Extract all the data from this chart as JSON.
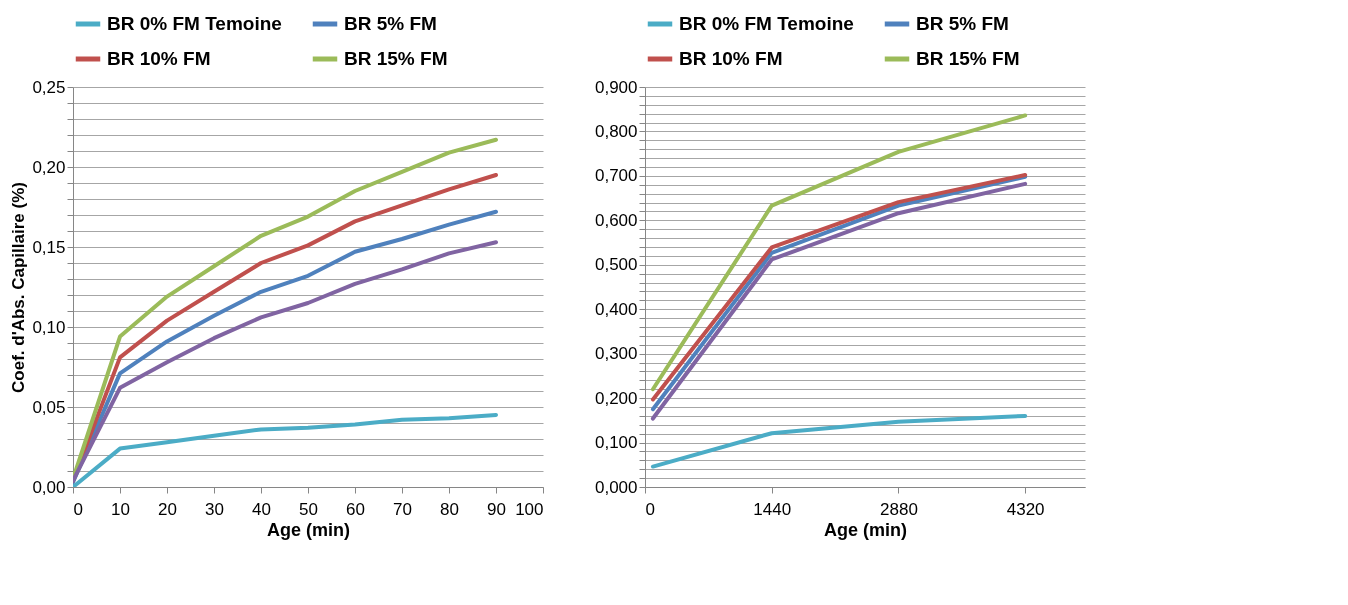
{
  "chart_data": [
    {
      "type": "line",
      "xlabel": "Age (min)",
      "ylabel": "Coef. d'Abs. Capillaire (%)",
      "legend": "top",
      "grid": "y",
      "marker": "none",
      "x": [
        0,
        10,
        20,
        30,
        40,
        50,
        60,
        70,
        80,
        90
      ],
      "xlim": [
        0,
        100
      ],
      "xticks": [
        0,
        10,
        20,
        30,
        40,
        50,
        60,
        70,
        80,
        90,
        100
      ],
      "ylim": [
        0,
        0.25
      ],
      "yticks": [
        {
          "value": 0,
          "label": "0,00"
        },
        {
          "value": 0.01,
          "label": null
        },
        {
          "value": 0.02,
          "label": null
        },
        {
          "value": 0.03,
          "label": null
        },
        {
          "value": 0.04,
          "label": null
        },
        {
          "value": 0.05,
          "label": "0,05"
        },
        {
          "value": 0.06,
          "label": null
        },
        {
          "value": 0.07,
          "label": null
        },
        {
          "value": 0.08,
          "label": null
        },
        {
          "value": 0.09,
          "label": null
        },
        {
          "value": 0.1,
          "label": "0,10"
        },
        {
          "value": 0.11,
          "label": null
        },
        {
          "value": 0.12,
          "label": null
        },
        {
          "value": 0.13,
          "label": null
        },
        {
          "value": 0.14,
          "label": null
        },
        {
          "value": 0.15,
          "label": "0,15"
        },
        {
          "value": 0.16,
          "label": null
        },
        {
          "value": 0.17,
          "label": null
        },
        {
          "value": 0.18,
          "label": null
        },
        {
          "value": 0.19,
          "label": null
        },
        {
          "value": 0.2,
          "label": "0,20"
        },
        {
          "value": 0.21,
          "label": null
        },
        {
          "value": 0.22,
          "label": null
        },
        {
          "value": 0.23,
          "label": null
        },
        {
          "value": 0.24,
          "label": null
        },
        {
          "value": 0.25,
          "label": "0,25"
        }
      ],
      "series": [
        {
          "name": "BR 0% FM Temoine",
          "color": "#4bacc6",
          "values": [
            0,
            0.024,
            0.028,
            0.032,
            0.036,
            0.037,
            0.039,
            0.042,
            0.043,
            0.045
          ]
        },
        {
          "name": "BR 5% FM",
          "color": "#4f81bd",
          "values": [
            0.003,
            0.071,
            0.091,
            0.107,
            0.122,
            0.132,
            0.147,
            0.155,
            0.164,
            0.172
          ]
        },
        {
          "name": "BR 10% FM",
          "color": "#c0504d",
          "values": [
            0.004,
            0.081,
            0.104,
            0.122,
            0.14,
            0.151,
            0.166,
            0.176,
            0.186,
            0.195
          ]
        },
        {
          "name": "BR 15% FM",
          "color": "#9bbb59",
          "values": [
            0.005,
            0.094,
            0.119,
            0.138,
            0.157,
            0.169,
            0.185,
            0.197,
            0.209,
            0.217
          ]
        },
        {
          "color": "#8064a2",
          "values": [
            0.004,
            0.062,
            0.078,
            0.093,
            0.106,
            0.115,
            0.127,
            0.136,
            0.146,
            0.153
          ]
        }
      ]
    },
    {
      "type": "line",
      "xlabel": "Age (min)",
      "legend": "top",
      "grid": "y",
      "marker": "none",
      "x": [
        90,
        1440,
        2880,
        4320
      ],
      "xlim": [
        0,
        5000
      ],
      "xticks": [
        0,
        1440,
        2880,
        4320
      ],
      "ylim": [
        0,
        0.9
      ],
      "yticks": [
        {
          "value": 0,
          "label": "0,000"
        },
        {
          "value": 0.02,
          "label": null
        },
        {
          "value": 0.04,
          "label": null
        },
        {
          "value": 0.06,
          "label": null
        },
        {
          "value": 0.08,
          "label": null
        },
        {
          "value": 0.1,
          "label": "0,100"
        },
        {
          "value": 0.12,
          "label": null
        },
        {
          "value": 0.14,
          "label": null
        },
        {
          "value": 0.16,
          "label": null
        },
        {
          "value": 0.18,
          "label": null
        },
        {
          "value": 0.2,
          "label": "0,200"
        },
        {
          "value": 0.22,
          "label": null
        },
        {
          "value": 0.24,
          "label": null
        },
        {
          "value": 0.26,
          "label": null
        },
        {
          "value": 0.28,
          "label": null
        },
        {
          "value": 0.3,
          "label": "0,300"
        },
        {
          "value": 0.32,
          "label": null
        },
        {
          "value": 0.34,
          "label": null
        },
        {
          "value": 0.36,
          "label": null
        },
        {
          "value": 0.38,
          "label": null
        },
        {
          "value": 0.4,
          "label": "0,400"
        },
        {
          "value": 0.42,
          "label": null
        },
        {
          "value": 0.44,
          "label": null
        },
        {
          "value": 0.46,
          "label": null
        },
        {
          "value": 0.48,
          "label": null
        },
        {
          "value": 0.5,
          "label": "0,500"
        },
        {
          "value": 0.52,
          "label": null
        },
        {
          "value": 0.54,
          "label": null
        },
        {
          "value": 0.56,
          "label": null
        },
        {
          "value": 0.58,
          "label": null
        },
        {
          "value": 0.6,
          "label": "0,600"
        },
        {
          "value": 0.62,
          "label": null
        },
        {
          "value": 0.64,
          "label": null
        },
        {
          "value": 0.66,
          "label": null
        },
        {
          "value": 0.68,
          "label": null
        },
        {
          "value": 0.7,
          "label": "0,700"
        },
        {
          "value": 0.72,
          "label": null
        },
        {
          "value": 0.74,
          "label": null
        },
        {
          "value": 0.76,
          "label": null
        },
        {
          "value": 0.78,
          "label": null
        },
        {
          "value": 0.8,
          "label": "0,800"
        },
        {
          "value": 0.82,
          "label": null
        },
        {
          "value": 0.84,
          "label": null
        },
        {
          "value": 0.86,
          "label": null
        },
        {
          "value": 0.88,
          "label": null
        },
        {
          "value": 0.9,
          "label": "0,900"
        }
      ],
      "series": [
        {
          "name": "BR 0% FM Temoine",
          "color": "#4bacc6",
          "values": [
            0.046,
            0.121,
            0.147,
            0.16
          ]
        },
        {
          "name": "BR 5% FM",
          "color": "#4f81bd",
          "values": [
            0.175,
            0.527,
            0.633,
            0.698
          ]
        },
        {
          "name": "BR 10% FM",
          "color": "#c0504d",
          "values": [
            0.197,
            0.539,
            0.641,
            0.702
          ]
        },
        {
          "name": "BR 15% FM",
          "color": "#9bbb59",
          "values": [
            0.22,
            0.633,
            0.754,
            0.836
          ]
        },
        {
          "color": "#8064a2",
          "values": [
            0.154,
            0.512,
            0.616,
            0.682
          ]
        }
      ]
    }
  ]
}
